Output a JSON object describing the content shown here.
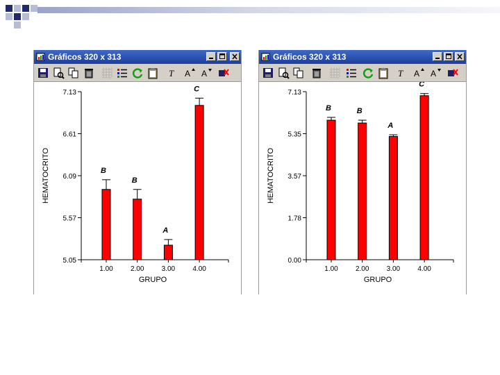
{
  "windows": [
    {
      "title": "Gráficos 320 x 313",
      "buttons": {
        "minimize": "minimize",
        "maximize": "maximize",
        "close": "close"
      }
    },
    {
      "title": "Gráficos 320 x 313",
      "buttons": {
        "minimize": "minimize",
        "maximize": "maximize",
        "close": "close"
      }
    }
  ],
  "toolbar_icons": [
    "save-icon",
    "print-preview-icon",
    "copy-icon",
    "delete-icon",
    "grid-icon",
    "legend-icon",
    "refresh-icon",
    "clipboard-icon",
    "text-italic-icon",
    "font-increase-icon",
    "font-decrease-icon",
    "color-eraser-icon"
  ],
  "colors": {
    "bar": "#ff0000",
    "titlebar": "#2a4fb3",
    "toolbar": "#d4d0c8",
    "deco_navy": "#1f2a6e"
  },
  "chart_data": [
    {
      "type": "bar",
      "categories": [
        "1.00",
        "2.00",
        "3.00",
        "4.00"
      ],
      "values": [
        5.92,
        5.8,
        5.23,
        6.96
      ],
      "error_upper": [
        6.04,
        5.92,
        5.3,
        7.05
      ],
      "group_letters": [
        "B",
        "B",
        "A",
        "C"
      ],
      "title": "",
      "xlabel": "GRUPO",
      "ylabel": "HEMATOCRITO",
      "ylim": [
        5.05,
        7.13
      ],
      "yticks": [
        "5.05",
        "5.57",
        "6.09",
        "6.61",
        "7.13"
      ],
      "grid": false
    },
    {
      "type": "bar",
      "categories": [
        "1.00",
        "2.00",
        "3.00",
        "4.00"
      ],
      "values": [
        5.92,
        5.8,
        5.23,
        6.96
      ],
      "error_upper": [
        6.04,
        5.92,
        5.3,
        7.05
      ],
      "group_letters": [
        "B",
        "B",
        "A",
        "C"
      ],
      "title": "",
      "xlabel": "GRUPO",
      "ylabel": "HEMATOCRITO",
      "ylim": [
        0.0,
        7.13
      ],
      "yticks": [
        "0.00",
        "1.78",
        "3.57",
        "5.35",
        "7.13"
      ],
      "grid": false
    }
  ]
}
